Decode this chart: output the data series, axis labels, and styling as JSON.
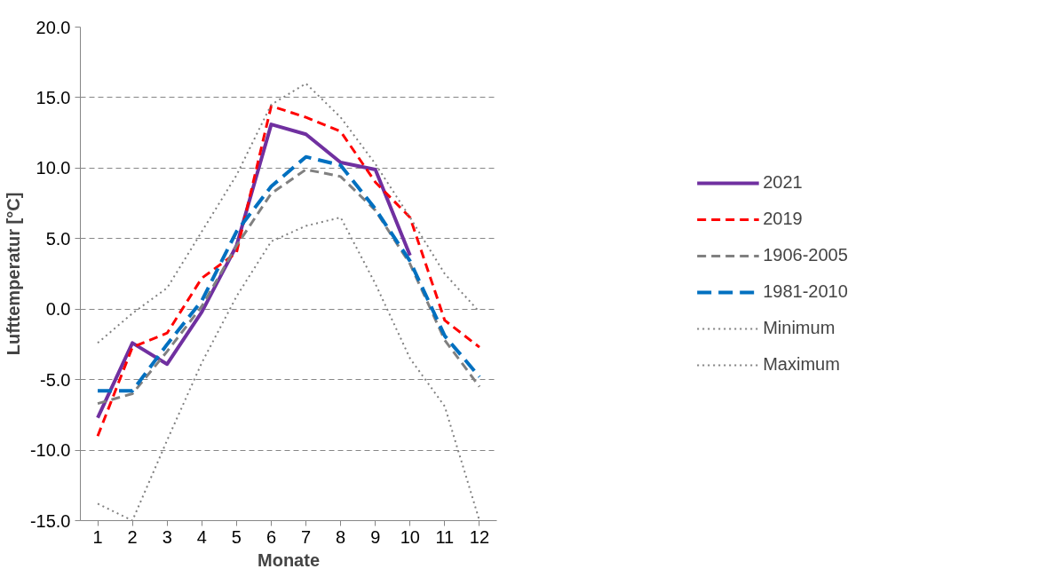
{
  "chart_data": {
    "type": "line",
    "xlabel": "Monate",
    "ylabel": "Lufttemperatur [°C]",
    "x": [
      1,
      2,
      3,
      4,
      5,
      6,
      7,
      8,
      9,
      10,
      11,
      12
    ],
    "xlim": [
      0.5,
      12.5
    ],
    "xticks": [
      1,
      2,
      3,
      4,
      5,
      6,
      7,
      8,
      9,
      10,
      11,
      12
    ],
    "ylim": [
      -15,
      20
    ],
    "yticks": [
      {
        "value": -15,
        "label": "-15.0"
      },
      {
        "value": -10,
        "label": "-10.0"
      },
      {
        "value": -5,
        "label": "-5.0"
      },
      {
        "value": 0,
        "label": "0.0"
      },
      {
        "value": 5,
        "label": "5.0"
      },
      {
        "value": 10,
        "label": "10.0"
      },
      {
        "value": 15,
        "label": "15.0"
      },
      {
        "value": 20,
        "label": "20.0"
      }
    ],
    "grid": "y",
    "legend": "right",
    "marker": "none",
    "series": [
      {
        "name": "2021",
        "color": "#7030a0",
        "line_style": "solid",
        "values": [
          -7.7,
          -2.4,
          -3.9,
          -0.2,
          4.5,
          13.1,
          12.4,
          10.4,
          9.9,
          3.8,
          null,
          null
        ]
      },
      {
        "name": "2019",
        "color": "#ff0000",
        "line_style": "dashed",
        "values": [
          -9.0,
          -2.7,
          -1.7,
          2.2,
          4.0,
          14.4,
          13.6,
          12.6,
          9.0,
          6.5,
          -0.8,
          -2.7
        ]
      },
      {
        "name": "1906-2005",
        "color": "#808080",
        "line_style": "dashed",
        "values": [
          -6.7,
          -6.0,
          -3.0,
          0.2,
          4.5,
          8.2,
          9.9,
          9.4,
          7.0,
          3.2,
          -2.2,
          -5.5
        ]
      },
      {
        "name": "1981-2010",
        "color": "#0070c0",
        "line_style": "dashed",
        "values": [
          -5.8,
          -5.8,
          -2.5,
          0.6,
          5.5,
          8.7,
          10.8,
          10.2,
          7.1,
          3.4,
          -1.9,
          -4.8
        ]
      },
      {
        "name": "Minimum",
        "color": "#808080",
        "line_style": "dotted",
        "values": [
          -13.8,
          -15.0,
          -9.3,
          -3.8,
          0.9,
          4.8,
          5.9,
          6.5,
          1.8,
          -3.5,
          -6.9,
          -15.0
        ]
      },
      {
        "name": "Maximum",
        "color": "#808080",
        "line_style": "dotted",
        "values": [
          -2.4,
          -0.3,
          1.5,
          5.5,
          9.5,
          14.5,
          16.0,
          13.6,
          10.3,
          6.5,
          2.5,
          -0.2
        ]
      }
    ]
  }
}
